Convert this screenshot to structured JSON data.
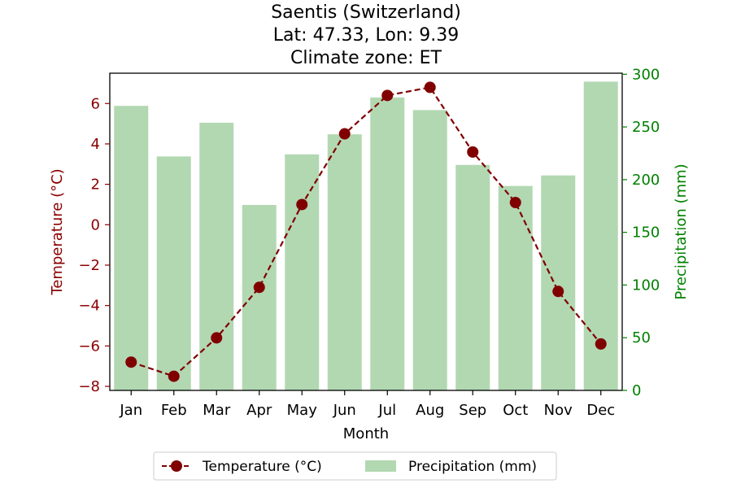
{
  "chart_data": {
    "type": "bar",
    "title": [
      "Saentis (Switzerland)",
      "Lat: 47.33, Lon: 9.39",
      "Climate zone: ET"
    ],
    "xlabel": "Month",
    "ylabel_left": "Temperature (°C)",
    "ylabel_right": "Precipitation (mm)",
    "categories": [
      "Jan",
      "Feb",
      "Mar",
      "Apr",
      "May",
      "Jun",
      "Jul",
      "Aug",
      "Sep",
      "Oct",
      "Nov",
      "Dec"
    ],
    "ylim_left": [
      -8.2,
      7.5
    ],
    "ylim_right": [
      0,
      301
    ],
    "yticks_left": [
      -8,
      -6,
      -4,
      -2,
      0,
      2,
      4,
      6
    ],
    "yticks_right": [
      0,
      50,
      100,
      150,
      200,
      250,
      300
    ],
    "series": [
      {
        "name": "Temperature (°C)",
        "kind": "line",
        "axis": "left",
        "color": "#800000",
        "linestyle": "dashed",
        "marker": "circle",
        "values": [
          -6.8,
          -7.5,
          -5.6,
          -3.1,
          1.0,
          4.5,
          6.4,
          6.8,
          3.6,
          1.1,
          -3.3,
          -5.9
        ]
      },
      {
        "name": "Precipitation (mm)",
        "kind": "bar",
        "axis": "right",
        "color": "#b2d8b2",
        "values": [
          270,
          222,
          254,
          176,
          224,
          243,
          278,
          266,
          214,
          194,
          204,
          293
        ]
      }
    ],
    "colors": {
      "left_axis": "#8b0000",
      "right_axis": "#008000"
    },
    "grid": false,
    "legend_position": "bottom-center"
  }
}
